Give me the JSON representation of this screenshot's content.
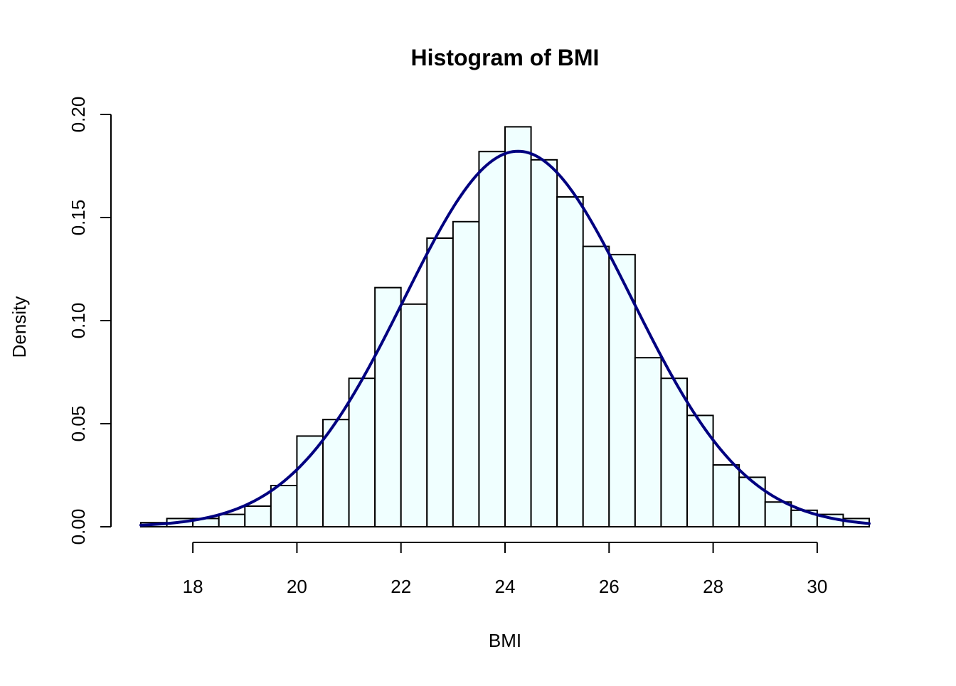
{
  "chart_data": {
    "type": "bar",
    "title": "Histogram of BMI",
    "xlabel": "BMI",
    "ylabel": "Density",
    "xlim": [
      17,
      31
    ],
    "ylim": [
      0,
      0.2
    ],
    "x_ticks": [
      18,
      20,
      22,
      24,
      26,
      28,
      30
    ],
    "x_tick_labels": [
      "18",
      "20",
      "22",
      "24",
      "26",
      "28",
      "30"
    ],
    "y_ticks": [
      0,
      0.05,
      0.1,
      0.15,
      0.2
    ],
    "y_tick_labels": [
      "0.00",
      "0.05",
      "0.10",
      "0.15",
      "0.20"
    ],
    "bin_edges": [
      17,
      17.5,
      18,
      18.5,
      19,
      19.5,
      20,
      20.5,
      21,
      21.5,
      22,
      22.5,
      23,
      23.5,
      24,
      24.5,
      25,
      25.5,
      26,
      26.5,
      27,
      27.5,
      28,
      28.5,
      29,
      29.5,
      30,
      30.5,
      31
    ],
    "values": [
      0.002,
      0.004,
      0.004,
      0.006,
      0.01,
      0.02,
      0.044,
      0.052,
      0.072,
      0.116,
      0.108,
      0.14,
      0.148,
      0.182,
      0.194,
      0.178,
      0.16,
      0.136,
      0.132,
      0.082,
      0.072,
      0.054,
      0.03,
      0.024,
      0.012,
      0.008,
      0.006,
      0.004
    ],
    "density_curve": {
      "type": "normal",
      "mean": 24.25,
      "sd": 2.19
    },
    "grid": false,
    "colors": {
      "bar_fill": "#F0FFFF",
      "bar_border": "#000000",
      "curve": "#000080"
    }
  }
}
